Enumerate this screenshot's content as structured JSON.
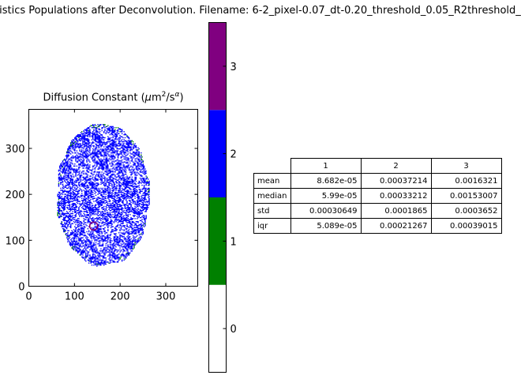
{
  "figure": {
    "title": "tistics Populations after Deconvolution. Filename: 6-2_pixel-0.07_dt-0.20_threshold_0.05_R2threshold_"
  },
  "chart_data": [
    {
      "type": "heatmap",
      "title": "Diffusion Constant (μm²/s^α)",
      "title_parts": {
        "prefix": "Diffusion Constant (",
        "mu": "μ",
        "m": "m",
        "sq": "2",
        "per_s": "/s",
        "alpha": "α",
        "close": ")"
      },
      "xlim": [
        0,
        370
      ],
      "ylim": [
        0,
        385
      ],
      "x_ticks": [
        0,
        100,
        200,
        300
      ],
      "y_ticks": [
        0,
        100,
        200,
        300
      ],
      "x_tick_labels": [
        "0",
        "100",
        "200",
        "300"
      ],
      "y_tick_labels": [
        "0",
        "100",
        "200",
        "300"
      ],
      "blob": {
        "center_x": 162,
        "center_y": 200,
        "radius_x": 102,
        "radius_y": 155
      },
      "highlight": {
        "x": 142,
        "y": 131,
        "label": "3"
      },
      "colors": {
        "0": "#ffffff",
        "1": "#008000",
        "2": "#0000ff",
        "3": "#800080"
      }
    },
    {
      "type": "colorbar",
      "bands": [
        {
          "value": 0,
          "color": "#ffffff"
        },
        {
          "value": 1,
          "color": "#008000"
        },
        {
          "value": 2,
          "color": "#0000ff"
        },
        {
          "value": 3,
          "color": "#800080"
        }
      ],
      "range": [
        -0.5,
        3.5
      ],
      "tick_labels": [
        "0",
        "1",
        "2",
        "3"
      ]
    },
    {
      "type": "table",
      "columns": [
        "1",
        "2",
        "3"
      ],
      "rows": [
        {
          "label": "mean",
          "values": [
            "8.682e-05",
            "0.00037214",
            "0.0016321"
          ]
        },
        {
          "label": "median",
          "values": [
            "5.99e-05",
            "0.00033212",
            "0.00153007"
          ]
        },
        {
          "label": "std",
          "values": [
            "0.00030649",
            "0.0001865",
            "0.0003652"
          ]
        },
        {
          "label": "iqr",
          "values": [
            "5.089e-05",
            "0.00021267",
            "0.00039015"
          ]
        }
      ]
    }
  ]
}
